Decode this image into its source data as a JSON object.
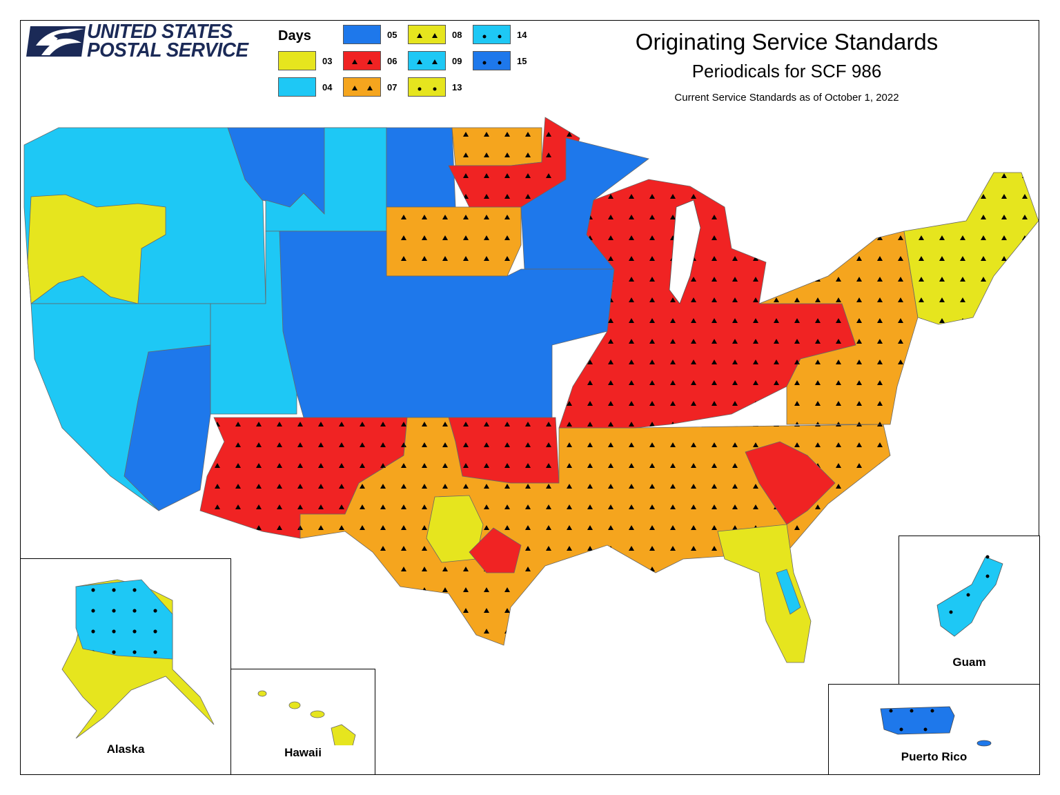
{
  "logo": {
    "line1": "UNITED STATES",
    "line2": "POSTAL SERVICE",
    "icon": "eagle-icon"
  },
  "legend": {
    "title": "Days",
    "items": [
      {
        "code": "03",
        "color": "#e6e51e",
        "pattern": "none"
      },
      {
        "code": "04",
        "color": "#1ec8f5",
        "pattern": "none"
      },
      {
        "code": "05",
        "color": "#1e78eb",
        "pattern": "none"
      },
      {
        "code": "06",
        "color": "#f02323",
        "pattern": "triangle"
      },
      {
        "code": "07",
        "color": "#f5a51e",
        "pattern": "triangle"
      },
      {
        "code": "08",
        "color": "#e6e51e",
        "pattern": "triangle"
      },
      {
        "code": "09",
        "color": "#1ec8f5",
        "pattern": "triangle"
      },
      {
        "code": "13",
        "color": "#e6e51e",
        "pattern": "dot"
      },
      {
        "code": "14",
        "color": "#1ec8f5",
        "pattern": "dot"
      },
      {
        "code": "15",
        "color": "#1e78eb",
        "pattern": "dot"
      }
    ]
  },
  "title": {
    "main": "Originating Service Standards",
    "sub": "Periodicals for SCF 986",
    "date_line": "Current Service Standards as of October 1, 2022"
  },
  "insets": {
    "alaska": "Alaska",
    "hawaii": "Hawaii",
    "guam": "Guam",
    "puerto_rico": "Puerto Rico"
  },
  "colors": {
    "yellow": "#e6e51e",
    "cyan": "#1ec8f5",
    "blue": "#1e78eb",
    "red": "#f02323",
    "orange": "#f5a51e",
    "navy": "#1b2a57"
  }
}
